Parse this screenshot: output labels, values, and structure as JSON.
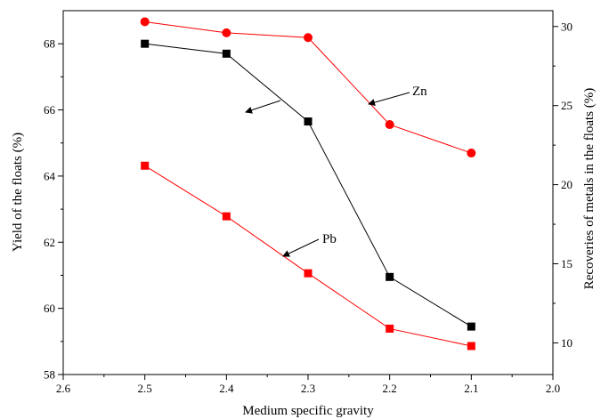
{
  "chart_data": {
    "type": "line",
    "title": "",
    "xlabel": "Medium specific gravity",
    "ylabel_left": "Yield of the floats (%)",
    "ylabel_right": "Recoveries of metals in the floats (%)",
    "x_reversed": true,
    "xlim": [
      2.6,
      2.0
    ],
    "ylim_left": [
      58,
      69
    ],
    "ylim_right": [
      8,
      31
    ],
    "x_ticks": [
      "2.6",
      "2.5",
      "2.4",
      "2.3",
      "2.2",
      "2.1",
      "2.0"
    ],
    "y_left_ticks": [
      "58",
      "60",
      "62",
      "64",
      "66",
      "68"
    ],
    "y_right_ticks": [
      "10",
      "15",
      "20",
      "25",
      "30"
    ],
    "grid": false,
    "series": [
      {
        "axis": "left",
        "color": "#000000",
        "marker": "square",
        "x": [
          2.5,
          2.4,
          2.3,
          2.2,
          2.1
        ],
        "y": [
          68.0,
          67.7,
          65.65,
          60.95,
          59.45
        ]
      },
      {
        "name": "Zn",
        "axis": "right",
        "color": "#ff0000",
        "marker": "circle",
        "x": [
          2.5,
          2.4,
          2.3,
          2.2,
          2.1
        ],
        "y": [
          30.3,
          29.6,
          29.3,
          23.8,
          22.0
        ]
      },
      {
        "name": "Pb",
        "axis": "right",
        "color": "#ff0000",
        "marker": "square",
        "x": [
          2.5,
          2.4,
          2.3,
          2.2,
          2.1
        ],
        "y": [
          21.2,
          18.0,
          14.4,
          10.9,
          9.8
        ]
      }
    ],
    "annotations": [
      {
        "text": "Zn",
        "arrow_target": "right-axis"
      },
      {
        "text": "Pb",
        "arrow_target": "pb-series"
      },
      {
        "text": "",
        "arrow_target": "left-axis"
      }
    ]
  }
}
